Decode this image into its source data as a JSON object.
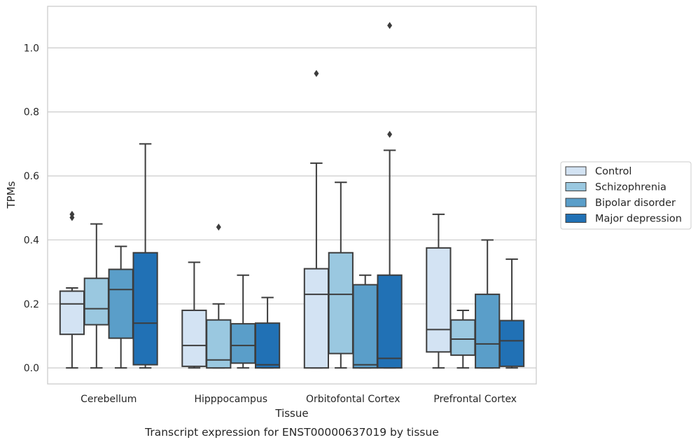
{
  "chart_data": {
    "type": "box",
    "caption": "Transcript expression for ENST00000637019 by tissue",
    "xlabel": "Tissue",
    "ylabel": "TPMs",
    "ylim": [
      -0.05,
      1.13
    ],
    "yticks": [
      0.0,
      0.2,
      0.4,
      0.6,
      0.8,
      1.0
    ],
    "ytick_labels": [
      "0.0",
      "0.2",
      "0.4",
      "0.6",
      "0.8",
      "1.0"
    ],
    "grid": true,
    "legend_position": "right",
    "categories": [
      "Cerebellum",
      "Hipppocampus",
      "Orbitofontal Cortex",
      "Prefrontal Cortex"
    ],
    "series": [
      {
        "name": "Control",
        "color": "#d3e3f3",
        "boxes": [
          {
            "whisker_low": 0.0,
            "q1": 0.105,
            "median": 0.2,
            "q3": 0.24,
            "whisker_high": 0.25,
            "outliers": [
              0.47,
              0.48
            ]
          },
          {
            "whisker_low": 0.0,
            "q1": 0.005,
            "median": 0.07,
            "q3": 0.18,
            "whisker_high": 0.33,
            "outliers": []
          },
          {
            "whisker_low": 0.0,
            "q1": 0.0,
            "median": 0.23,
            "q3": 0.31,
            "whisker_high": 0.64,
            "outliers": [
              0.92
            ]
          },
          {
            "whisker_low": 0.0,
            "q1": 0.05,
            "median": 0.12,
            "q3": 0.375,
            "whisker_high": 0.48,
            "outliers": []
          }
        ]
      },
      {
        "name": "Schizophrenia",
        "color": "#9ac8e0",
        "boxes": [
          {
            "whisker_low": 0.0,
            "q1": 0.135,
            "median": 0.185,
            "q3": 0.28,
            "whisker_high": 0.45,
            "outliers": []
          },
          {
            "whisker_low": 0.0,
            "q1": 0.0,
            "median": 0.025,
            "q3": 0.15,
            "whisker_high": 0.2,
            "outliers": [
              0.44
            ]
          },
          {
            "whisker_low": 0.0,
            "q1": 0.045,
            "median": 0.23,
            "q3": 0.36,
            "whisker_high": 0.58,
            "outliers": []
          },
          {
            "whisker_low": 0.0,
            "q1": 0.04,
            "median": 0.09,
            "q3": 0.15,
            "whisker_high": 0.18,
            "outliers": []
          }
        ]
      },
      {
        "name": "Bipolar disorder",
        "color": "#5a9ec9",
        "boxes": [
          {
            "whisker_low": 0.0,
            "q1": 0.093,
            "median": 0.245,
            "q3": 0.308,
            "whisker_high": 0.38,
            "outliers": []
          },
          {
            "whisker_low": 0.0,
            "q1": 0.015,
            "median": 0.07,
            "q3": 0.138,
            "whisker_high": 0.29,
            "outliers": []
          },
          {
            "whisker_low": 0.0,
            "q1": 0.0,
            "median": 0.01,
            "q3": 0.26,
            "whisker_high": 0.29,
            "outliers": []
          },
          {
            "whisker_low": 0.0,
            "q1": 0.0,
            "median": 0.075,
            "q3": 0.23,
            "whisker_high": 0.4,
            "outliers": []
          }
        ]
      },
      {
        "name": "Major depression",
        "color": "#2171b5",
        "boxes": [
          {
            "whisker_low": 0.0,
            "q1": 0.01,
            "median": 0.14,
            "q3": 0.36,
            "whisker_high": 0.7,
            "outliers": []
          },
          {
            "whisker_low": 0.0,
            "q1": 0.0,
            "median": 0.01,
            "q3": 0.14,
            "whisker_high": 0.22,
            "outliers": []
          },
          {
            "whisker_low": 0.0,
            "q1": 0.0,
            "median": 0.03,
            "q3": 0.29,
            "whisker_high": 0.68,
            "outliers": [
              0.73,
              1.07
            ]
          },
          {
            "whisker_low": 0.0,
            "q1": 0.005,
            "median": 0.085,
            "q3": 0.148,
            "whisker_high": 0.34,
            "outliers": []
          }
        ]
      }
    ]
  },
  "colors": {
    "line": "#3d3d3d",
    "grid": "#cccccc",
    "frame": "#cccccc"
  }
}
